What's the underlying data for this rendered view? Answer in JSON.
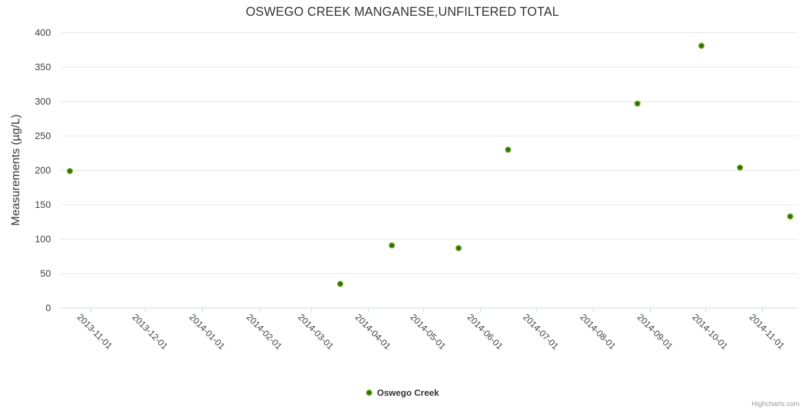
{
  "chart": {
    "title": "OSWEGO CREEK MANGANESE,UNFILTERED TOTAL",
    "credits": "Highcharts.com",
    "legend": {
      "series_label": "Oswego Creek"
    },
    "y_axis": {
      "title": "Measurements (µg/L)",
      "tick_labels": [
        "0",
        "50",
        "100",
        "150",
        "200",
        "250",
        "300",
        "350",
        "400"
      ]
    },
    "x_axis": {
      "tick_labels": [
        "2013-11-01",
        "2013-12-01",
        "2014-01-01",
        "2014-02-01",
        "2014-03-01",
        "2014-04-01",
        "2014-05-01",
        "2014-06-01",
        "2014-07-01",
        "2014-08-01",
        "2014-09-01",
        "2014-10-01",
        "2014-11-01"
      ]
    },
    "colors": {
      "marker_outer": "#7fbb35",
      "marker_inner": "#2c6b00",
      "grid_line": "#e6e6e6",
      "axis_line": "#ccd6eb",
      "title_text": "#333333",
      "label_text": "#3f3f3f",
      "credits_text": "#999999"
    }
  },
  "chart_data": {
    "type": "scatter",
    "title": "OSWEGO CREEK MANGANESE,UNFILTERED TOTAL",
    "xlabel": "",
    "ylabel": "Measurements (µg/L)",
    "ylim": [
      0,
      400
    ],
    "y_tick_step": 50,
    "x_range": [
      "2013-10-16",
      "2014-11-20"
    ],
    "grid": true,
    "legend_position": "bottom-center",
    "series": [
      {
        "name": "Oswego Creek",
        "points": [
          {
            "date": "2013-10-21",
            "value": 199
          },
          {
            "date": "2014-03-17",
            "value": 35
          },
          {
            "date": "2014-04-14",
            "value": 91
          },
          {
            "date": "2014-05-20",
            "value": 87
          },
          {
            "date": "2014-06-16",
            "value": 230
          },
          {
            "date": "2014-08-25",
            "value": 297
          },
          {
            "date": "2014-09-29",
            "value": 381
          },
          {
            "date": "2014-10-20",
            "value": 204
          },
          {
            "date": "2014-11-16",
            "value": 133
          }
        ]
      }
    ]
  }
}
